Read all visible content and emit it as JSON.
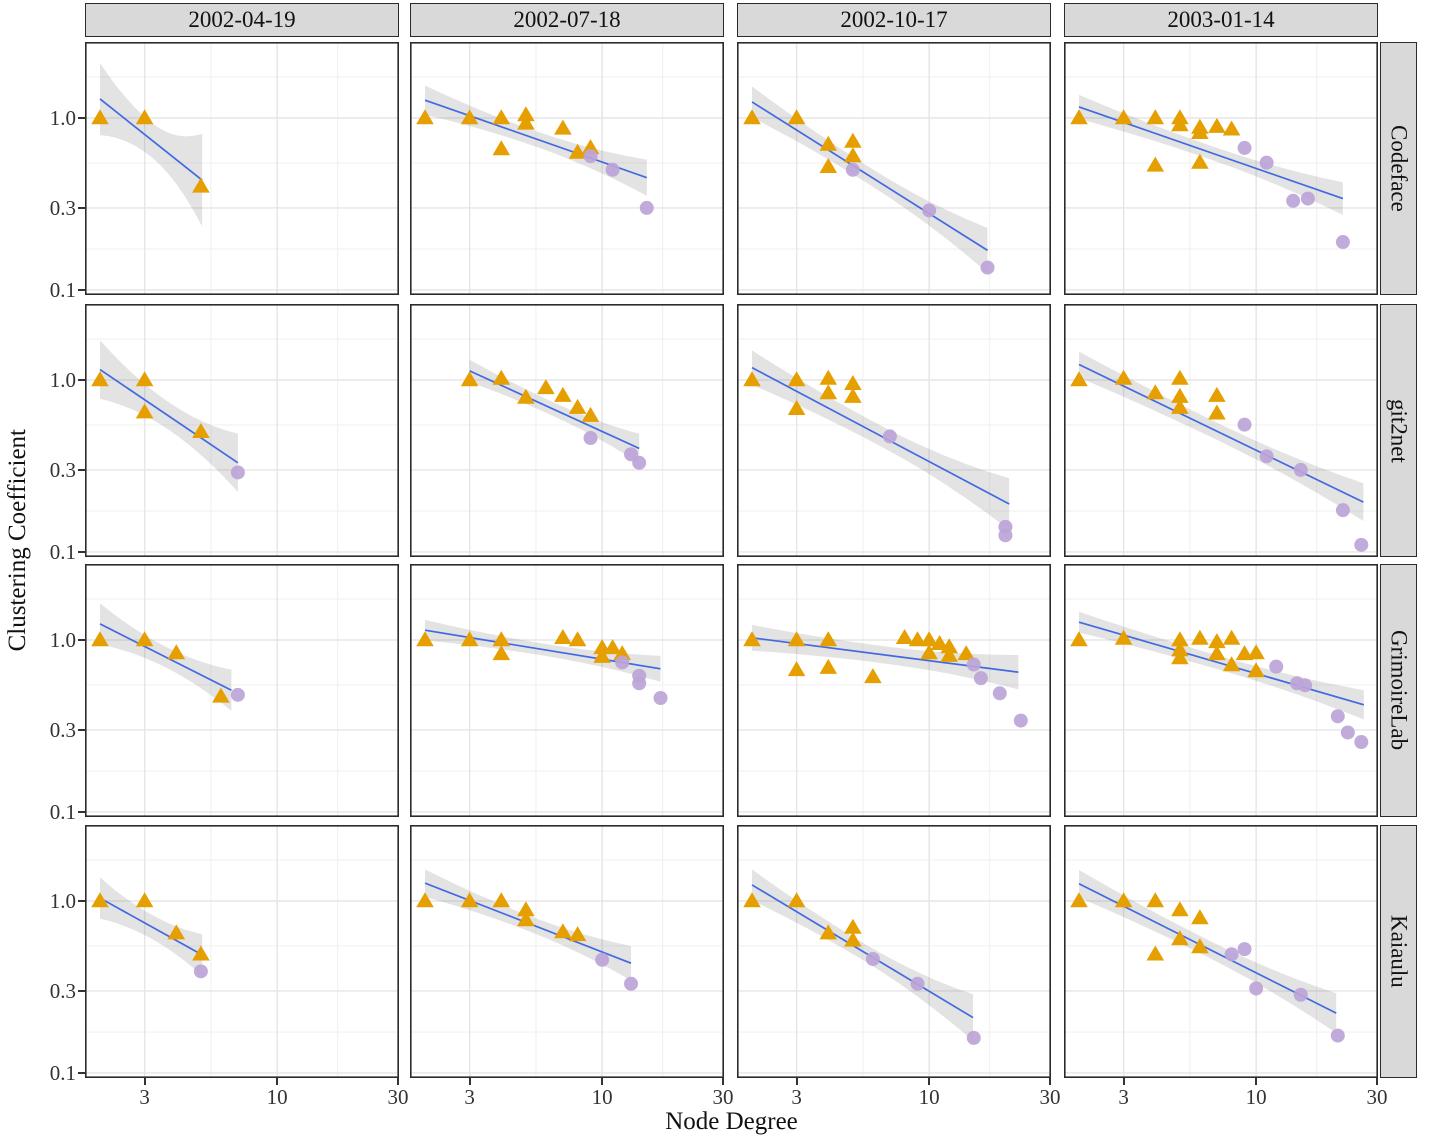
{
  "chart_data": {
    "type": "scatter",
    "title": "",
    "xlabel": "Node Degree",
    "ylabel": "Clustering Coefficient",
    "x_scale": "log",
    "y_scale": "log",
    "grid": "on",
    "legend_position": "none",
    "x_ticks": [
      "3",
      "10",
      "30"
    ],
    "y_ticks": [
      "1.0",
      "0.3",
      "0.1"
    ],
    "x_tick_values": [
      3,
      10,
      30
    ],
    "y_tick_values": [
      1.0,
      0.3,
      0.1
    ],
    "x_minor_gridlines": [
      5.477,
      17.321
    ],
    "y_minor_gridlines": [
      1.732,
      0.548,
      0.173
    ],
    "x_domain": [
      1.745,
      30.26
    ],
    "y_domain": [
      0.0935,
      2.766
    ],
    "facet_columns": [
      "2002-04-19",
      "2002-07-18",
      "2002-10-17",
      "2003-01-14"
    ],
    "facet_rows": [
      "Codeface",
      "git2net",
      "GrimoireLab",
      "Kaiaulu"
    ],
    "markers": {
      "triangle_color": "#E69F00",
      "circle_color": "#BCA4D8",
      "trend_line_color": "#4169E1",
      "band_color": "rgba(127,127,127,0.22)",
      "strip_background": "#D9D9D9",
      "major_grid_color": "#E5E5E5",
      "minor_grid_color": "#F2F2F2",
      "panel_border_color": "#2b2b2b"
    },
    "panels": [
      {
        "row": "Codeface",
        "col": "2002-04-19",
        "triangles": [
          [
            2,
            1.0
          ],
          [
            3,
            1.0
          ],
          [
            5,
            0.4
          ]
        ],
        "circles": [],
        "trend_line": {
          "x": [
            2,
            5.06
          ],
          "y": [
            1.29,
            0.435
          ]
        },
        "band_halfwidth_log10": [
          0.21,
          0.1,
          0.27
        ]
      },
      {
        "row": "Codeface",
        "col": "2002-07-18",
        "triangles": [
          [
            2,
            1.0
          ],
          [
            3,
            1.0
          ],
          [
            4,
            1.0
          ],
          [
            4,
            0.66
          ],
          [
            5,
            1.04
          ],
          [
            5,
            0.93
          ],
          [
            7,
            0.87
          ],
          [
            8,
            0.63
          ],
          [
            9,
            0.67
          ]
        ],
        "circles": [
          [
            9,
            0.6
          ],
          [
            11,
            0.5
          ],
          [
            15,
            0.3
          ]
        ],
        "trend_line": {
          "x": [
            2,
            15
          ],
          "y": [
            1.27,
            0.45
          ]
        },
        "band_halfwidth_log10": [
          0.085,
          0.045,
          0.105
        ]
      },
      {
        "row": "Codeface",
        "col": "2002-10-17",
        "triangles": [
          [
            2,
            1.0
          ],
          [
            3,
            1.0
          ],
          [
            4,
            0.7
          ],
          [
            4,
            0.52
          ],
          [
            5,
            0.73
          ],
          [
            5,
            0.6
          ]
        ],
        "circles": [
          [
            5,
            0.5
          ],
          [
            10,
            0.29
          ],
          [
            17,
            0.135
          ]
        ],
        "trend_line": {
          "x": [
            2,
            17
          ],
          "y": [
            1.24,
            0.17
          ]
        },
        "band_halfwidth_log10": [
          0.09,
          0.05,
          0.13
        ]
      },
      {
        "row": "Codeface",
        "col": "2003-01-14",
        "triangles": [
          [
            2,
            1.0
          ],
          [
            3,
            1.0
          ],
          [
            4,
            1.0
          ],
          [
            4,
            0.53
          ],
          [
            5,
            1.0
          ],
          [
            5,
            0.91
          ],
          [
            6,
            0.88
          ],
          [
            6,
            0.82
          ],
          [
            6,
            0.55
          ],
          [
            7,
            0.89
          ],
          [
            8,
            0.86
          ]
        ],
        "circles": [
          [
            9,
            0.67
          ],
          [
            11,
            0.55
          ],
          [
            14,
            0.33
          ],
          [
            16,
            0.34
          ],
          [
            22,
            0.19
          ]
        ],
        "trend_line": {
          "x": [
            2,
            22
          ],
          "y": [
            1.16,
            0.34
          ]
        },
        "band_halfwidth_log10": [
          0.07,
          0.04,
          0.095
        ]
      },
      {
        "row": "git2net",
        "col": "2002-04-19",
        "triangles": [
          [
            2,
            1.0
          ],
          [
            3,
            1.0
          ],
          [
            3,
            0.65
          ],
          [
            5,
            0.5
          ]
        ],
        "circles": [
          [
            7,
            0.29
          ]
        ],
        "trend_line": {
          "x": [
            2,
            7
          ],
          "y": [
            1.15,
            0.33
          ]
        },
        "band_halfwidth_log10": [
          0.17,
          0.08,
          0.17
        ]
      },
      {
        "row": "git2net",
        "col": "2002-07-18",
        "triangles": [
          [
            3,
            1.0
          ],
          [
            4,
            1.02
          ],
          [
            5,
            0.79
          ],
          [
            6,
            0.9
          ],
          [
            7,
            0.81
          ],
          [
            8,
            0.69
          ],
          [
            9,
            0.62
          ]
        ],
        "circles": [
          [
            9,
            0.46
          ],
          [
            13,
            0.37
          ],
          [
            14,
            0.33
          ]
        ],
        "trend_line": {
          "x": [
            3,
            14
          ],
          "y": [
            1.13,
            0.4
          ]
        },
        "band_halfwidth_log10": [
          0.065,
          0.04,
          0.085
        ]
      },
      {
        "row": "git2net",
        "col": "2002-10-17",
        "triangles": [
          [
            2,
            1.0
          ],
          [
            3,
            1.0
          ],
          [
            3,
            0.68
          ],
          [
            4,
            1.02
          ],
          [
            4,
            0.84
          ],
          [
            5,
            0.95
          ],
          [
            5,
            0.8
          ]
        ],
        "circles": [
          [
            7,
            0.47
          ],
          [
            20,
            0.14
          ],
          [
            20,
            0.125
          ]
        ],
        "trend_line": {
          "x": [
            2,
            20.7
          ],
          "y": [
            1.18,
            0.19
          ]
        },
        "band_halfwidth_log10": [
          0.1,
          0.06,
          0.15
        ]
      },
      {
        "row": "git2net",
        "col": "2003-01-14",
        "triangles": [
          [
            2,
            1.0
          ],
          [
            3,
            1.02
          ],
          [
            4,
            0.84
          ],
          [
            5,
            1.02
          ],
          [
            5,
            0.8
          ],
          [
            5,
            0.69
          ],
          [
            7,
            0.81
          ],
          [
            7,
            0.64
          ]
        ],
        "circles": [
          [
            9,
            0.55
          ],
          [
            11,
            0.36
          ],
          [
            15,
            0.3
          ],
          [
            22,
            0.175
          ],
          [
            26,
            0.11
          ]
        ],
        "trend_line": {
          "x": [
            2,
            26.5
          ],
          "y": [
            1.23,
            0.195
          ]
        },
        "band_halfwidth_log10": [
          0.075,
          0.05,
          0.11
        ]
      },
      {
        "row": "GrimoireLab",
        "col": "2002-04-19",
        "triangles": [
          [
            2,
            1.0
          ],
          [
            3,
            1.0
          ],
          [
            4,
            0.84
          ],
          [
            6,
            0.47
          ]
        ],
        "circles": [
          [
            7,
            0.48
          ]
        ],
        "trend_line": {
          "x": [
            2,
            6.6
          ],
          "y": [
            1.24,
            0.51
          ]
        },
        "band_halfwidth_log10": [
          0.12,
          0.06,
          0.12
        ]
      },
      {
        "row": "GrimoireLab",
        "col": "2002-07-18",
        "triangles": [
          [
            2,
            1.0
          ],
          [
            3,
            1.0
          ],
          [
            4,
            1.0
          ],
          [
            4,
            0.83
          ],
          [
            7,
            1.03
          ],
          [
            8,
            1.0
          ],
          [
            10,
            0.9
          ],
          [
            10,
            0.8
          ],
          [
            11,
            0.9
          ],
          [
            12,
            0.83
          ]
        ],
        "circles": [
          [
            12,
            0.74
          ],
          [
            14,
            0.62
          ],
          [
            14,
            0.56
          ],
          [
            17,
            0.46
          ]
        ],
        "trend_line": {
          "x": [
            2,
            17
          ],
          "y": [
            1.14,
            0.68
          ]
        },
        "band_halfwidth_log10": [
          0.06,
          0.035,
          0.075
        ]
      },
      {
        "row": "GrimoireLab",
        "col": "2002-10-17",
        "triangles": [
          [
            2,
            1.0
          ],
          [
            3,
            1.0
          ],
          [
            3,
            0.67
          ],
          [
            4,
            1.0
          ],
          [
            4,
            0.69
          ],
          [
            6,
            0.61
          ],
          [
            8,
            1.03
          ],
          [
            9,
            1.0
          ],
          [
            10,
            1.0
          ],
          [
            10,
            0.84
          ],
          [
            11,
            0.95
          ],
          [
            12,
            0.91
          ],
          [
            12,
            0.81
          ],
          [
            14,
            0.83
          ]
        ],
        "circles": [
          [
            15,
            0.72
          ],
          [
            16,
            0.6
          ],
          [
            19,
            0.49
          ],
          [
            23,
            0.34
          ]
        ],
        "trend_line": {
          "x": [
            2,
            22.5
          ],
          "y": [
            1.03,
            0.65
          ]
        },
        "band_halfwidth_log10": [
          0.075,
          0.05,
          0.1
        ]
      },
      {
        "row": "GrimoireLab",
        "col": "2003-01-14",
        "triangles": [
          [
            2,
            1.0
          ],
          [
            3,
            1.02
          ],
          [
            5,
            1.0
          ],
          [
            5,
            0.875
          ],
          [
            5,
            0.785
          ],
          [
            6,
            1.02
          ],
          [
            7,
            0.975
          ],
          [
            7,
            0.83
          ],
          [
            8,
            1.02
          ],
          [
            8,
            0.715
          ],
          [
            9,
            0.83
          ],
          [
            10,
            0.84
          ],
          [
            10,
            0.66
          ]
        ],
        "circles": [
          [
            12,
            0.7
          ],
          [
            14.5,
            0.56
          ],
          [
            15.6,
            0.545
          ],
          [
            21,
            0.36
          ],
          [
            23,
            0.29
          ],
          [
            26,
            0.255
          ]
        ],
        "trend_line": {
          "x": [
            2,
            26.6
          ],
          "y": [
            1.27,
            0.42
          ]
        },
        "band_halfwidth_log10": [
          0.06,
          0.04,
          0.085
        ]
      },
      {
        "row": "Kaiaulu",
        "col": "2002-04-19",
        "triangles": [
          [
            2,
            1.0
          ],
          [
            3,
            1.0
          ],
          [
            4,
            0.65
          ],
          [
            5,
            0.49
          ]
        ],
        "circles": [
          [
            5,
            0.39
          ]
        ],
        "trend_line": {
          "x": [
            2,
            5.06
          ],
          "y": [
            1.04,
            0.486
          ]
        },
        "band_halfwidth_log10": [
          0.12,
          0.07,
          0.12
        ]
      },
      {
        "row": "Kaiaulu",
        "col": "2002-07-18",
        "triangles": [
          [
            2,
            1.0
          ],
          [
            3,
            1.0
          ],
          [
            4,
            1.0
          ],
          [
            5,
            0.885
          ],
          [
            5,
            0.775
          ],
          [
            7,
            0.66
          ],
          [
            8,
            0.635
          ]
        ],
        "circles": [
          [
            10,
            0.455
          ],
          [
            13,
            0.33
          ]
        ],
        "trend_line": {
          "x": [
            2,
            13
          ],
          "y": [
            1.27,
            0.435
          ]
        },
        "band_halfwidth_log10": [
          0.08,
          0.045,
          0.1
        ]
      },
      {
        "row": "Kaiaulu",
        "col": "2002-10-17",
        "triangles": [
          [
            2,
            1.0
          ],
          [
            3,
            1.0
          ],
          [
            4,
            0.65
          ],
          [
            5,
            0.7
          ],
          [
            5,
            0.59
          ]
        ],
        "circles": [
          [
            6,
            0.46
          ],
          [
            9,
            0.33
          ],
          [
            15,
            0.16
          ]
        ],
        "trend_line": {
          "x": [
            2,
            14.9
          ],
          "y": [
            1.24,
            0.21
          ]
        },
        "band_halfwidth_log10": [
          0.09,
          0.05,
          0.135
        ]
      },
      {
        "row": "Kaiaulu",
        "col": "2003-01-14",
        "triangles": [
          [
            2,
            1.0
          ],
          [
            3,
            1.0
          ],
          [
            4,
            1.0
          ],
          [
            4,
            0.49
          ],
          [
            5,
            0.885
          ],
          [
            5,
            0.6
          ],
          [
            6,
            0.795
          ],
          [
            6,
            0.54
          ]
        ],
        "circles": [
          [
            8,
            0.49
          ],
          [
            9,
            0.525
          ],
          [
            10,
            0.31
          ],
          [
            15,
            0.285
          ],
          [
            21,
            0.165
          ]
        ],
        "trend_line": {
          "x": [
            2,
            20.7
          ],
          "y": [
            1.26,
            0.223
          ]
        },
        "band_halfwidth_log10": [
          0.08,
          0.05,
          0.115
        ]
      }
    ]
  }
}
